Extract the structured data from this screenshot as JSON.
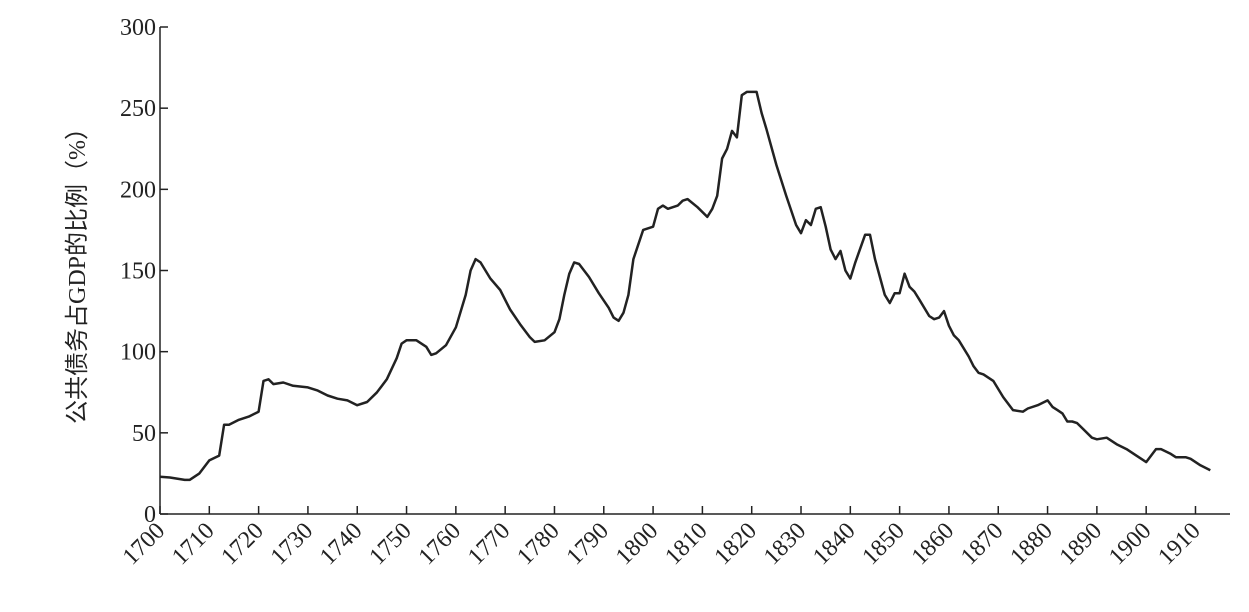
{
  "chart_data": {
    "type": "line",
    "ylabel": "公共债务占GDP的比例（%）",
    "x": [
      1700,
      1702,
      1705,
      1706,
      1708,
      1710,
      1712,
      1713,
      1714,
      1716,
      1718,
      1720,
      1721,
      1722,
      1723,
      1725,
      1727,
      1730,
      1732,
      1734,
      1736,
      1738,
      1740,
      1742,
      1744,
      1746,
      1748,
      1749,
      1750,
      1752,
      1754,
      1755,
      1756,
      1758,
      1760,
      1762,
      1763,
      1764,
      1765,
      1767,
      1769,
      1771,
      1773,
      1775,
      1776,
      1778,
      1780,
      1781,
      1782,
      1783,
      1784,
      1785,
      1787,
      1789,
      1791,
      1792,
      1793,
      1794,
      1795,
      1796,
      1798,
      1800,
      1801,
      1802,
      1803,
      1805,
      1806,
      1807,
      1809,
      1811,
      1812,
      1813,
      1814,
      1815,
      1816,
      1817,
      1818,
      1819,
      1821,
      1822,
      1823,
      1825,
      1827,
      1829,
      1830,
      1831,
      1832,
      1833,
      1834,
      1835,
      1836,
      1837,
      1838,
      1839,
      1840,
      1841,
      1843,
      1844,
      1845,
      1846,
      1847,
      1848,
      1849,
      1850,
      1851,
      1852,
      1853,
      1854,
      1856,
      1857,
      1858,
      1859,
      1860,
      1861,
      1862,
      1864,
      1865,
      1866,
      1867,
      1869,
      1871,
      1873,
      1875,
      1876,
      1878,
      1880,
      1881,
      1882,
      1883,
      1884,
      1885,
      1886,
      1887,
      1889,
      1890,
      1892,
      1894,
      1896,
      1898,
      1900,
      1901,
      1902,
      1903,
      1905,
      1906,
      1908,
      1909,
      1911,
      1913
    ],
    "series": [
      {
        "name": "公共债务",
        "color": "#222222",
        "values": [
          23,
          22.5,
          21,
          21,
          25,
          33,
          36,
          55,
          55,
          58,
          60,
          63,
          82,
          83,
          80,
          81,
          79,
          78,
          76,
          73,
          71,
          70,
          67,
          69,
          75,
          83,
          96,
          105,
          107,
          107,
          103,
          98,
          99,
          104,
          115,
          135,
          150,
          157,
          155,
          145,
          138,
          126,
          117,
          109,
          106,
          107,
          112,
          120,
          135,
          148,
          155,
          154,
          146,
          136,
          127,
          121,
          119,
          124,
          135,
          157,
          175,
          177,
          188,
          190,
          188,
          190,
          193,
          194,
          189,
          183,
          188,
          196,
          219,
          225,
          236,
          232,
          258,
          260,
          260,
          247,
          237,
          215,
          196,
          178,
          173,
          181,
          178,
          188,
          189,
          177,
          163,
          157,
          162,
          150,
          145,
          155,
          172,
          172,
          157,
          146,
          135,
          130,
          136,
          136,
          148,
          140,
          137,
          132,
          122,
          120,
          121,
          125,
          116,
          110,
          107,
          97,
          91,
          87,
          86,
          82,
          72,
          64,
          63,
          65,
          67,
          70,
          66,
          64,
          62,
          57,
          57,
          56,
          53,
          47,
          46,
          47,
          43,
          40,
          36,
          32,
          36,
          40,
          40,
          37,
          35,
          35,
          34,
          30,
          27
        ]
      }
    ],
    "xlim": [
      1700,
      1917
    ],
    "xticks": [
      1700,
      1710,
      1720,
      1730,
      1740,
      1750,
      1760,
      1770,
      1780,
      1790,
      1800,
      1810,
      1820,
      1830,
      1840,
      1850,
      1860,
      1870,
      1880,
      1890,
      1900,
      1910
    ],
    "ylim": [
      0,
      300
    ],
    "yticks": [
      0,
      50,
      100,
      150,
      200,
      250,
      300
    ]
  }
}
